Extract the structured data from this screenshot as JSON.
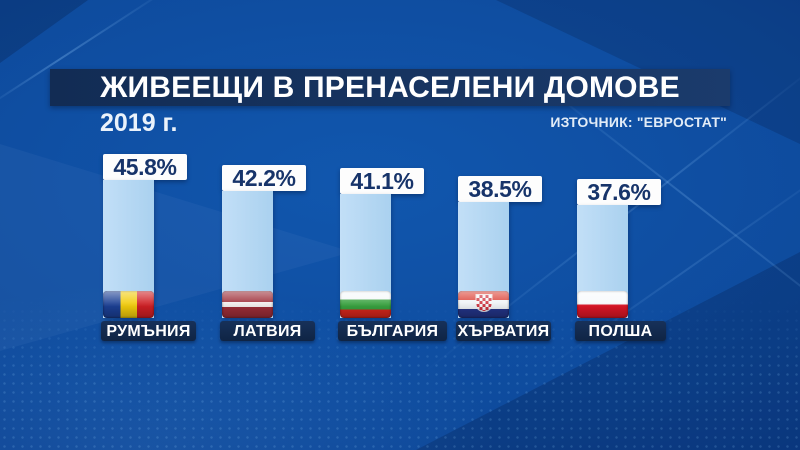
{
  "header": {
    "title": "ЖИВЕЕЩИ В ПРЕНАСЕЛЕНИ ДОМОВЕ",
    "year_label": "2019 г.",
    "source_label": "ИЗТОЧНИК: \"ЕВРОСТАТ\""
  },
  "chart_data": {
    "type": "bar",
    "title": "ЖИВЕЕЩИ В ПРЕНАСЕЛЕНИ ДОМОВЕ",
    "subtitle": "2019 г.",
    "source": "ИЗТОЧНИК: \"ЕВРОСТАТ\"",
    "unit": "percent",
    "orientation": "vertical",
    "gridlines": false,
    "axes_shown": false,
    "categories": [
      "РУМЪНИЯ",
      "ЛАТВИЯ",
      "БЪЛГАРИЯ",
      "ХЪРВАТИЯ",
      "ПОЛША"
    ],
    "values": [
      45.8,
      42.2,
      41.1,
      38.5,
      37.6
    ],
    "bars": [
      {
        "id": "romania",
        "label": "РУМЪНИЯ",
        "value": 45.8,
        "value_label": "45.8%",
        "flag_icon": "flag-romania"
      },
      {
        "id": "latvia",
        "label": "ЛАТВИЯ",
        "value": 42.2,
        "value_label": "42.2%",
        "flag_icon": "flag-latvia"
      },
      {
        "id": "bulgaria",
        "label": "БЪЛГАРИЯ",
        "value": 41.1,
        "value_label": "41.1%",
        "flag_icon": "flag-bulgaria"
      },
      {
        "id": "croatia",
        "label": "ХЪРВАТИЯ",
        "value": 38.5,
        "value_label": "38.5%",
        "flag_icon": "flag-croatia"
      },
      {
        "id": "poland",
        "label": "ПОЛША",
        "value": 37.6,
        "value_label": "37.6%",
        "flag_icon": "flag-poland"
      }
    ]
  },
  "colors": {
    "background_blue": "#0d479a",
    "title_band_navy": "#16335f",
    "bar_fill_lightblue": "#b5d8f2",
    "value_text_navy": "#17346a",
    "label_box_navy": "#122a4d",
    "text_white": "#ffffff"
  }
}
